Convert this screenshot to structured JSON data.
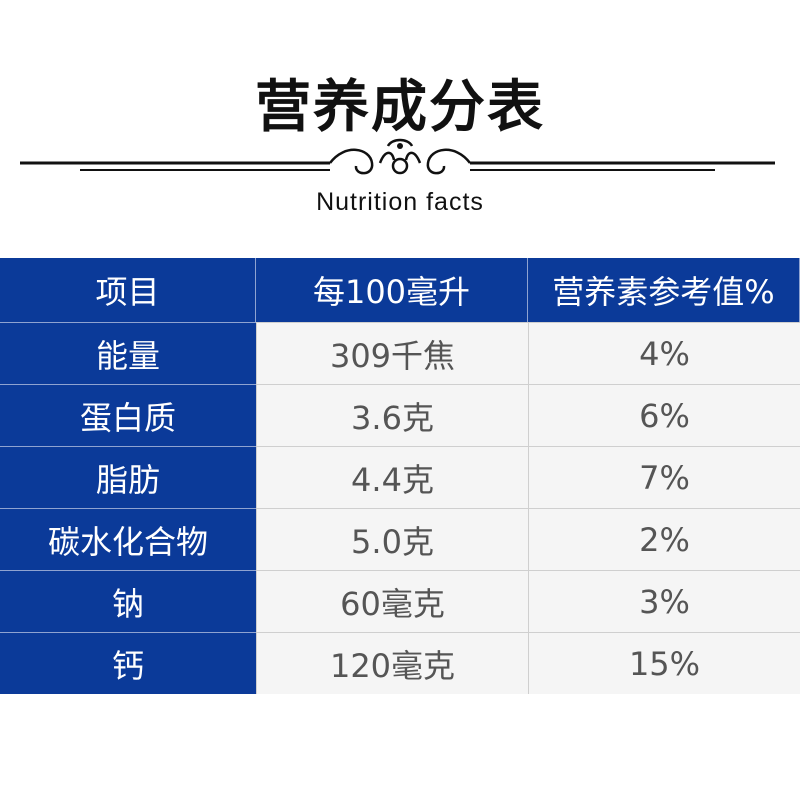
{
  "title": "营养成分表",
  "subtitle": "Nutrition facts",
  "table": {
    "headers": [
      "项目",
      "每100毫升",
      "营养素参考值%"
    ],
    "rows": [
      {
        "item": "能量",
        "per100ml": "309千焦",
        "nrv": "4%"
      },
      {
        "item": "蛋白质",
        "per100ml": "3.6克",
        "nrv": "6%"
      },
      {
        "item": "脂肪",
        "per100ml": "4.4克",
        "nrv": "7%"
      },
      {
        "item": "碳水化合物",
        "per100ml": "5.0克",
        "nrv": "2%"
      },
      {
        "item": "钠",
        "per100ml": "60毫克",
        "nrv": "3%"
      },
      {
        "item": "钙",
        "per100ml": "120毫克",
        "nrv": "15%"
      }
    ]
  },
  "colors": {
    "header_bg": "#0b3a99",
    "value_bg": "#f5f5f5",
    "value_text": "#555555"
  }
}
